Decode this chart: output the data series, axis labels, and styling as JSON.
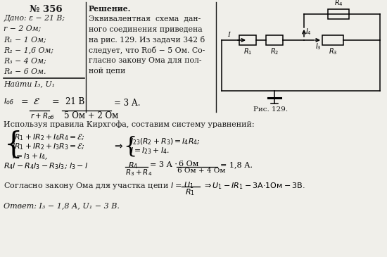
{
  "title": "№ 356",
  "bg_color": "#f0efea",
  "text_color": "#1a1a1a",
  "dado_lines": [
    "Дано: ε − 21 В;",
    "r − 2 Ом;",
    "R₁ − 1 Ом;",
    "R₂ − 1,6 Ом;",
    "R₃ − 4 Ом;",
    "R₄ − 6 Ом."
  ],
  "najti": "Найти I₃, U₁",
  "sol_lines": [
    "Решение.",
    "Эквивалентная  схема  дан-",
    "ного соединения приведена",
    "на рис. 129. Из задачи 342 б",
    "следует, что Rоб − 5 Ом. Со-",
    "гласно закону Ома для пол-",
    "ной цепи"
  ],
  "fig_caption": "Рис. 129.",
  "kirchhoff": "Используя правила Кирхгофа, составим систему уравнений:",
  "ohm_text": "Согласно закону Ома для участка цепи",
  "answer": "Ответ: I₃ − 1,8 А, U₁ − 3 В."
}
